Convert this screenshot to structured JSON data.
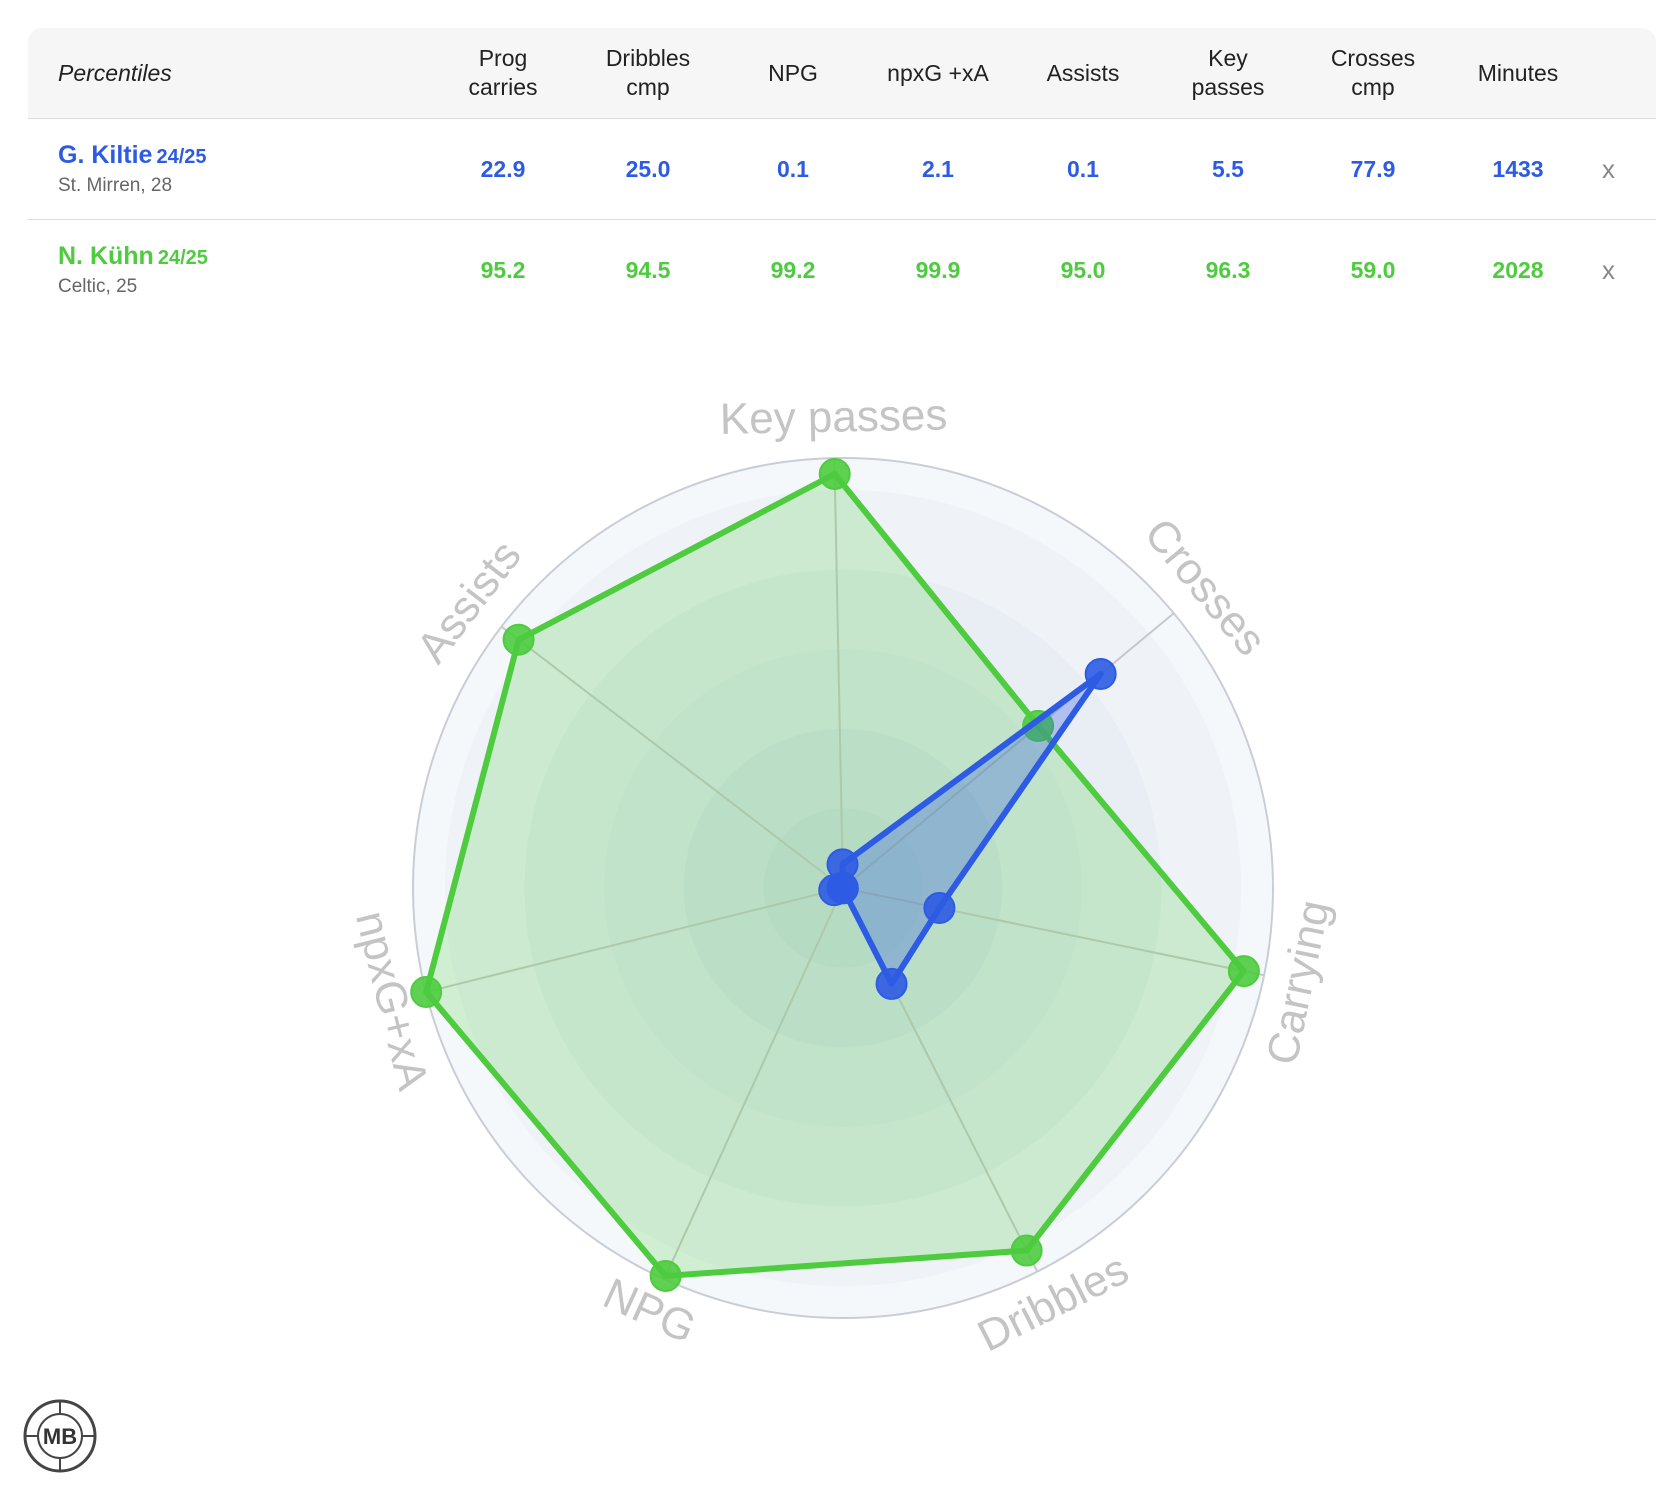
{
  "table": {
    "corner_label": "Percentiles",
    "headers": [
      {
        "line1": "Prog",
        "line2": "carries"
      },
      {
        "line1": "Dribbles",
        "line2": "cmp"
      },
      {
        "line1": "NPG",
        "line2": ""
      },
      {
        "line1": "npxG +xA",
        "line2": ""
      },
      {
        "line1": "Assists",
        "line2": ""
      },
      {
        "line1": "Key",
        "line2": "passes"
      },
      {
        "line1": "Crosses",
        "line2": "cmp"
      },
      {
        "line1": "Minutes",
        "line2": ""
      }
    ],
    "players": [
      {
        "name": "G. Kiltie",
        "season": "24/25",
        "club": "St. Mirren, 28",
        "values": [
          "22.9",
          "25.0",
          "0.1",
          "2.1",
          "0.1",
          "5.5",
          "77.9",
          "1433"
        ],
        "remove_label": "x"
      },
      {
        "name": "N. Kühn",
        "season": "24/25",
        "club": "Celtic, 25",
        "values": [
          "95.2",
          "94.5",
          "99.2",
          "99.9",
          "95.0",
          "96.3",
          "59.0",
          "2028"
        ],
        "remove_label": "x"
      }
    ]
  },
  "colors": {
    "player1": "#2d5be3",
    "player2": "#4ecb3f"
  },
  "chart_data": {
    "type": "radar",
    "axes": [
      "Key passes",
      "Crosses",
      "Carrying",
      "Dribbles",
      "NPG",
      "npxG+xA",
      "Assists"
    ],
    "range": [
      0,
      100
    ],
    "series": [
      {
        "name": "G. Kiltie",
        "values": [
          5.5,
          77.9,
          22.9,
          25.0,
          0.1,
          2.1,
          0.1
        ]
      },
      {
        "name": "N. Kühn",
        "values": [
          96.3,
          59.0,
          95.2,
          94.5,
          99.2,
          99.9,
          95.0
        ]
      }
    ]
  },
  "logo": {
    "text": "MB"
  }
}
